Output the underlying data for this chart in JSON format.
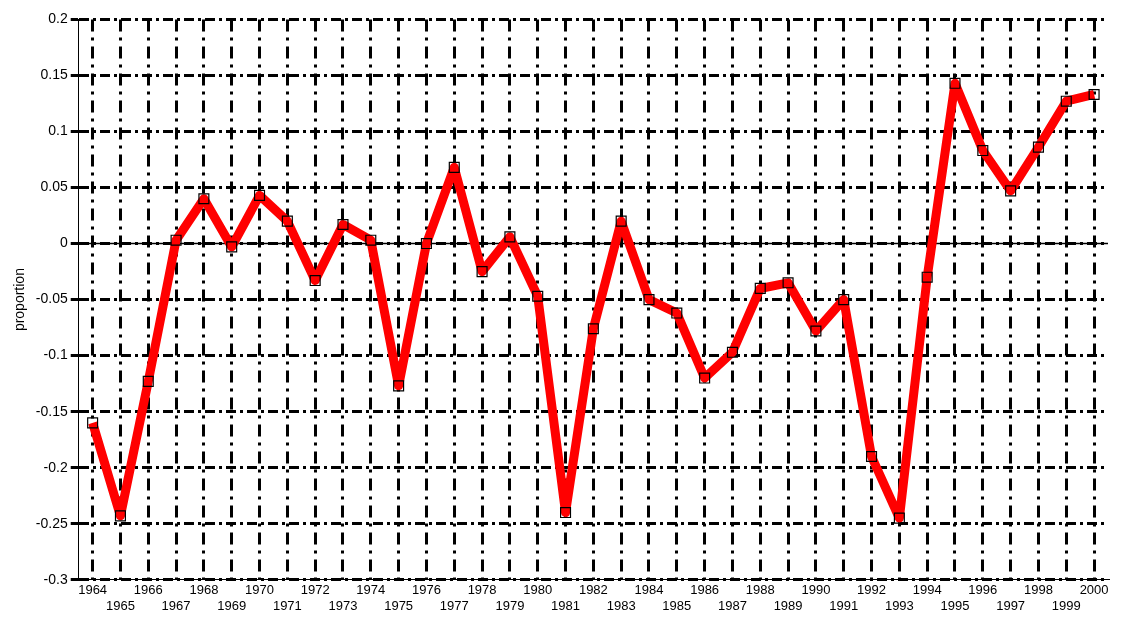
{
  "chart_data": {
    "type": "line",
    "ylabel": "proportion",
    "categories": [
      "1964",
      "1965",
      "1966",
      "1967",
      "1968",
      "1969",
      "1970",
      "1971",
      "1972",
      "1973",
      "1974",
      "1975",
      "1976",
      "1977",
      "1978",
      "1979",
      "1980",
      "1981",
      "1982",
      "1983",
      "1984",
      "1985",
      "1986",
      "1987",
      "1988",
      "1989",
      "1990",
      "1991",
      "1992",
      "1993",
      "1994",
      "1995",
      "1996",
      "1997",
      "1998",
      "1999",
      "2000"
    ],
    "series": [
      {
        "color": "#ff0000",
        "values": [
          -0.16,
          -0.243,
          -0.123,
          0.003,
          0.04,
          -0.003,
          0.043,
          0.02,
          -0.033,
          0.017,
          0.003,
          -0.127,
          0.0,
          0.068,
          -0.025,
          0.006,
          -0.047,
          -0.24,
          -0.076,
          0.02,
          -0.05,
          -0.062,
          -0.12,
          -0.097,
          -0.04,
          -0.035,
          -0.078,
          -0.05,
          -0.19,
          -0.245,
          -0.03,
          0.143,
          0.083,
          0.047,
          0.086,
          0.127,
          0.133
        ]
      }
    ],
    "ylim": [
      -0.3,
      0.2
    ],
    "yticks": [
      -0.3,
      -0.25,
      -0.2,
      -0.15,
      -0.1,
      -0.05,
      0,
      0.05,
      0.1,
      0.15,
      0.2
    ],
    "ref_lines": [
      {
        "axis": "y",
        "value": 0,
        "color": "#000000"
      }
    ],
    "grid": true,
    "marker": "square",
    "line_style": "solid",
    "legend": false
  }
}
